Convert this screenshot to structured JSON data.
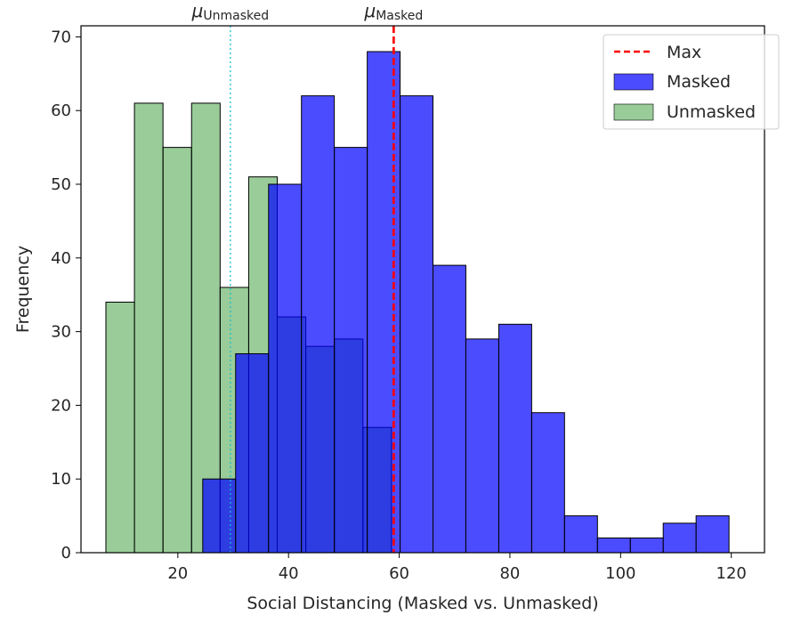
{
  "chart_data": {
    "type": "histogram",
    "title": "",
    "xlabel": "Social Distancing (Masked vs. Unmasked)",
    "ylabel": "Frequency",
    "xlim": [
      2.5,
      126
    ],
    "ylim": [
      0,
      71.5
    ],
    "xticks": [
      20,
      40,
      60,
      80,
      100,
      120
    ],
    "yticks": [
      0,
      10,
      20,
      30,
      40,
      50,
      60,
      70
    ],
    "grid": false,
    "legend": {
      "placement": "upper right",
      "entries": [
        {
          "label": "Max",
          "kind": "line",
          "color": "#ff0000"
        },
        {
          "label": "Masked",
          "kind": "patch",
          "color": "#0000ff"
        },
        {
          "label": "Unmasked",
          "kind": "patch",
          "color": "#008000"
        }
      ]
    },
    "series": [
      {
        "name": "Unmasked",
        "color": "#008000",
        "alpha": 0.4,
        "bin_edges": [
          7,
          12.16,
          17.32,
          22.48,
          27.64,
          32.8,
          37.96,
          43.12,
          48.28,
          53.44,
          58.6
        ],
        "values": [
          34,
          61,
          55,
          61,
          36,
          51,
          32,
          28,
          29,
          17
        ]
      },
      {
        "name": "Masked",
        "color": "#0000ff",
        "alpha": 0.7,
        "bin_edges": [
          24.5,
          30.44,
          36.39,
          42.33,
          48.27,
          54.22,
          60.16,
          66.1,
          72.04,
          77.99,
          83.93,
          89.87,
          95.82,
          101.76,
          107.7,
          113.64,
          119.59
        ],
        "values": [
          10,
          27,
          50,
          62,
          55,
          68,
          62,
          39,
          29,
          31,
          19,
          5,
          2,
          2,
          4,
          5
        ]
      }
    ],
    "reference_lines": [
      {
        "name": "Max",
        "x": 59,
        "color": "#ff0000",
        "style": "dashed"
      },
      {
        "name": "mean-masked",
        "x": 59,
        "color": "#ff0000",
        "style": "dashed"
      },
      {
        "name": "mean-unmasked",
        "x": 29.5,
        "color": "#17becf",
        "style": "dotted"
      }
    ],
    "annotations": [
      {
        "symbol": "μ",
        "subscript": "Unmasked",
        "x": 29.5
      },
      {
        "symbol": "μ",
        "subscript": "Masked",
        "x": 59
      }
    ]
  }
}
